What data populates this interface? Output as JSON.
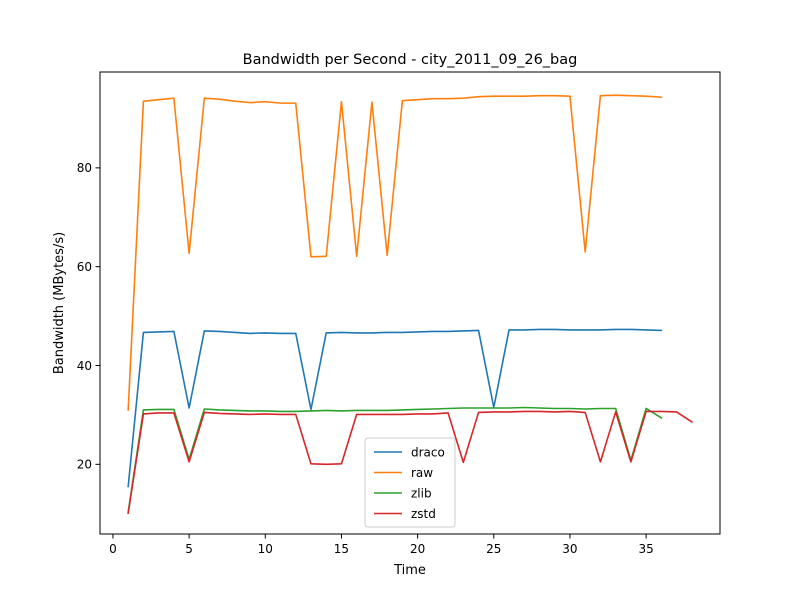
{
  "chart_data": {
    "type": "line",
    "title": "Bandwidth per Second - city_2011_09_26_bag",
    "xlabel": "Time",
    "ylabel": "Bandwidth (MBytes/s)",
    "xlim": [
      -0.85,
      39.85
    ],
    "ylim": [
      5.9,
      99.4
    ],
    "xticks": [
      0,
      5,
      10,
      15,
      20,
      25,
      30,
      35
    ],
    "yticks": [
      20,
      40,
      60,
      80
    ],
    "grid": false,
    "legend_position": "lower-center",
    "series": [
      {
        "name": "draco",
        "color": "#1f77b4",
        "x": [
          1,
          2,
          3,
          4,
          5,
          6,
          7,
          8,
          9,
          10,
          11,
          12,
          13,
          14,
          15,
          16,
          17,
          18,
          19,
          20,
          21,
          22,
          23,
          24,
          25,
          26,
          27,
          28,
          29,
          30,
          31,
          32,
          33,
          34,
          35,
          36
        ],
        "y": [
          15.5,
          46.7,
          46.8,
          46.9,
          31.4,
          47.0,
          46.9,
          46.7,
          46.5,
          46.6,
          46.5,
          46.5,
          31.1,
          46.6,
          46.7,
          46.6,
          46.6,
          46.7,
          46.7,
          46.8,
          46.9,
          46.9,
          47.0,
          47.1,
          31.5,
          47.2,
          47.2,
          47.3,
          47.3,
          47.2,
          47.2,
          47.2,
          47.3,
          47.3,
          47.2,
          47.1
        ]
      },
      {
        "name": "raw",
        "color": "#ff7f0e",
        "x": [
          1,
          2,
          3,
          4,
          5,
          6,
          7,
          8,
          9,
          10,
          11,
          12,
          13,
          14,
          15,
          16,
          17,
          18,
          19,
          20,
          21,
          22,
          23,
          24,
          25,
          26,
          27,
          28,
          29,
          30,
          31,
          32,
          33,
          34,
          35,
          36
        ],
        "y": [
          31.0,
          93.5,
          93.8,
          94.1,
          62.7,
          94.1,
          93.9,
          93.5,
          93.2,
          93.4,
          93.1,
          93.1,
          62.0,
          62.1,
          93.4,
          62.1,
          93.3,
          62.3,
          93.6,
          93.8,
          94.0,
          94.0,
          94.1,
          94.4,
          94.5,
          94.5,
          94.5,
          94.6,
          94.6,
          94.5,
          63.0,
          94.6,
          94.7,
          94.6,
          94.5,
          94.3
        ]
      },
      {
        "name": "zlib",
        "color": "#2ca02c",
        "x": [
          1,
          2,
          3,
          4,
          5,
          6,
          7,
          8,
          9,
          10,
          11,
          12,
          13,
          14,
          15,
          16,
          17,
          18,
          19,
          20,
          21,
          22,
          23,
          24,
          25,
          26,
          27,
          28,
          29,
          30,
          31,
          32,
          33,
          34,
          35,
          36
        ],
        "y": [
          10.3,
          31.0,
          31.1,
          31.1,
          21.0,
          31.2,
          31.0,
          30.9,
          30.8,
          30.8,
          30.7,
          30.7,
          30.8,
          30.9,
          30.8,
          30.9,
          30.9,
          30.9,
          31.0,
          31.1,
          31.2,
          31.3,
          31.4,
          31.4,
          31.4,
          31.4,
          31.5,
          31.4,
          31.3,
          31.3,
          31.2,
          31.3,
          31.3,
          20.8,
          31.3,
          29.4
        ]
      },
      {
        "name": "zstd",
        "color": "#d62728",
        "x": [
          1,
          2,
          3,
          4,
          5,
          6,
          7,
          8,
          9,
          10,
          11,
          12,
          13,
          14,
          15,
          16,
          17,
          18,
          19,
          20,
          21,
          22,
          23,
          24,
          25,
          26,
          27,
          28,
          29,
          30,
          31,
          32,
          33,
          34,
          35,
          36,
          37,
          38
        ],
        "y": [
          10.1,
          30.2,
          30.4,
          30.4,
          20.5,
          30.5,
          30.3,
          30.2,
          30.1,
          30.2,
          30.1,
          30.1,
          20.1,
          20.0,
          20.1,
          30.1,
          30.1,
          30.1,
          30.1,
          30.2,
          30.2,
          30.4,
          20.4,
          30.5,
          30.6,
          30.6,
          30.7,
          30.7,
          30.6,
          30.7,
          30.5,
          20.5,
          30.6,
          20.5,
          30.7,
          30.7,
          30.6,
          28.6
        ]
      }
    ]
  }
}
